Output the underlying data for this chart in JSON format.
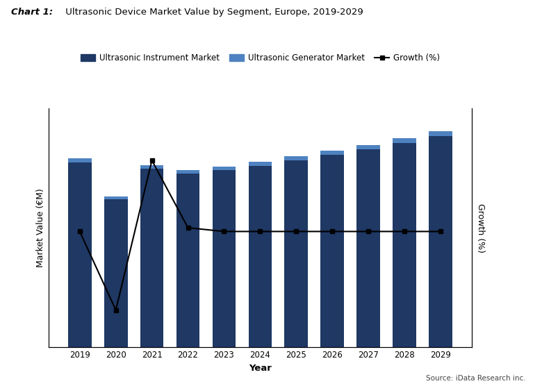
{
  "years": [
    2019,
    2020,
    2021,
    2022,
    2023,
    2024,
    2025,
    2026,
    2027,
    2028,
    2029
  ],
  "instrument_values": [
    850,
    680,
    820,
    800,
    815,
    835,
    860,
    885,
    910,
    940,
    970
  ],
  "generator_values": [
    18,
    14,
    18,
    16,
    17,
    18,
    19,
    20,
    21,
    22,
    24
  ],
  "growth_values": [
    3,
    -18,
    22,
    4,
    3,
    3,
    3,
    3,
    3,
    3,
    3
  ],
  "instrument_color": "#1F3864",
  "generator_color": "#4E82C0",
  "growth_color": "#000000",
  "title_bold": "Chart 1:",
  "title_normal": " Ultrasonic Device Market Value by Segment, Europe, 2019-2029",
  "ylabel_left": "Market Value (€M)",
  "ylabel_right": "Growth (%)",
  "xlabel": "Year",
  "legend_instrument": "Ultrasonic Instrument Market",
  "legend_generator": "Ultrasonic Generator Market",
  "legend_growth": "Growth (%)",
  "source_text": "Source: iData Research inc.",
  "ylim_left": [
    0,
    1100
  ],
  "ylim_right": [
    -28,
    36
  ],
  "background_color": "#ffffff",
  "grid_color": "#aaaaaa"
}
